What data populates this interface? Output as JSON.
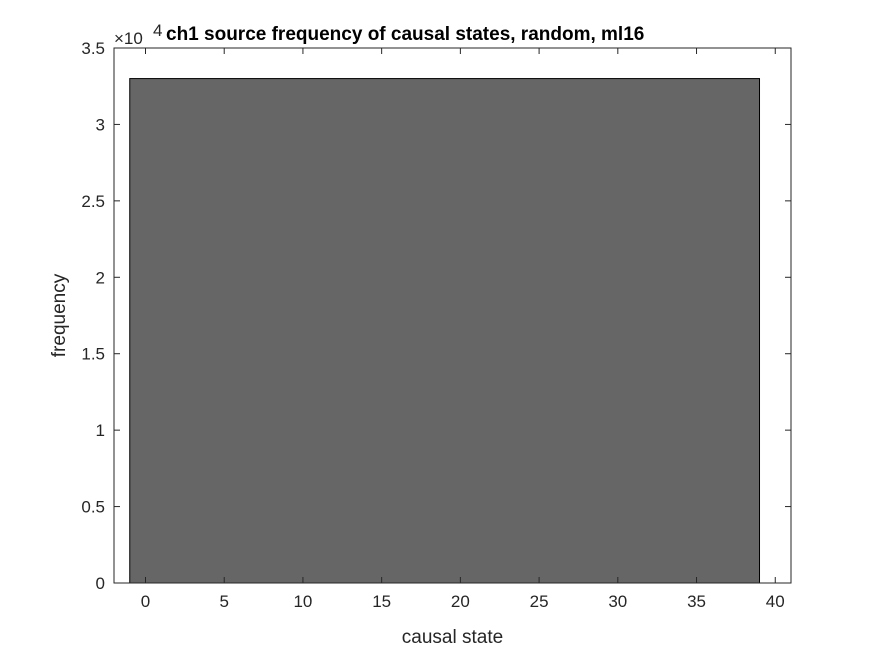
{
  "chart_data": {
    "type": "bar",
    "title": "ch1 source frequency of causal states, random, ml16",
    "xlabel": "causal state",
    "ylabel": "frequency",
    "xlim": [
      -2,
      41
    ],
    "ylim": [
      0,
      35000
    ],
    "x_ticks": [
      0,
      5,
      10,
      15,
      20,
      25,
      30,
      35,
      40
    ],
    "y_ticks": [
      0,
      5000,
      10000,
      15000,
      20000,
      25000,
      30000,
      35000
    ],
    "y_tick_labels": [
      "0",
      "0.5",
      "1",
      "1.5",
      "2",
      "2.5",
      "3",
      "3.5"
    ],
    "y_exponent_label": "×10",
    "y_exponent_power": "4",
    "categories": [
      -1,
      39
    ],
    "bar": {
      "x_start": -1,
      "x_end": 39,
      "value": 33000
    },
    "colors": {
      "bar_fill": "#666666",
      "bar_edge": "#000000",
      "axis": "#262626"
    },
    "grid": false
  }
}
